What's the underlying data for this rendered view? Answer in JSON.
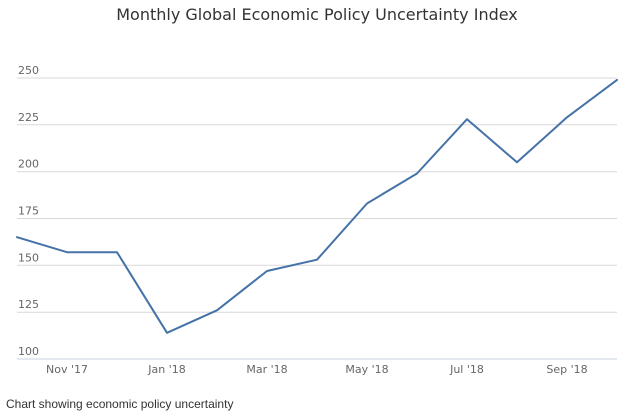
{
  "caption": "Chart showing economic policy uncertainty",
  "chart_data": {
    "type": "line",
    "title": "Monthly Global Economic Policy Uncertainty Index",
    "xlabel": "",
    "ylabel": "",
    "categories": [
      "Oct '17",
      "Nov '17",
      "Dec '17",
      "Jan '18",
      "Feb '18",
      "Mar '18",
      "Apr '18",
      "May '18",
      "Jun '18",
      "Jul '18",
      "Aug '18",
      "Sep '18",
      "Oct '18"
    ],
    "x_tick_labels": [
      "Nov '17",
      "Jan '18",
      "Mar '18",
      "May '18",
      "Jul '18",
      "Sep '18"
    ],
    "y_ticks": [
      "100",
      "125",
      "150",
      "175",
      "200",
      "225",
      "250"
    ],
    "ylim": [
      100,
      250
    ],
    "grid": true,
    "legend": "none",
    "series": [
      {
        "color": "#4572a7",
        "values": [
          165,
          157,
          157,
          114,
          126,
          147,
          153,
          183,
          199,
          228,
          205,
          229,
          249
        ]
      }
    ]
  }
}
